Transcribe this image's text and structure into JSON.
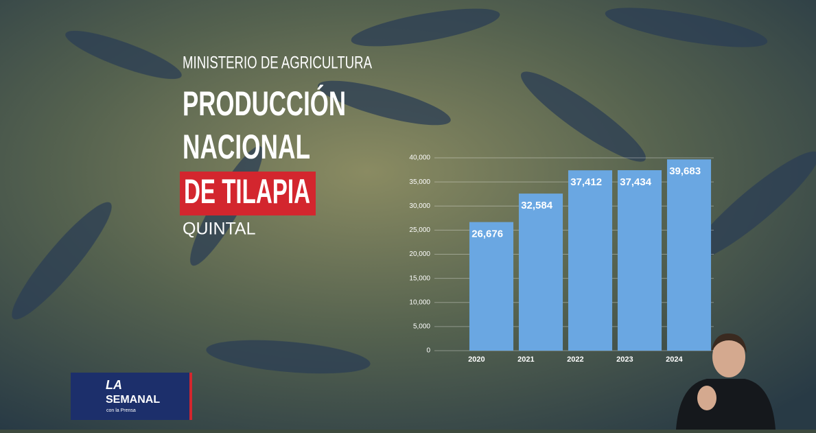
{
  "chart_data": {
    "type": "bar",
    "source": "MINISTERIO DE AGRICULTURA",
    "title_lines": [
      "PRODUCCIÓN",
      "NACIONAL"
    ],
    "title_highlight": "DE TILAPIA",
    "unit": "QUINTAL",
    "categories": [
      "2020",
      "2021",
      "2022",
      "2023",
      "2024"
    ],
    "values": [
      26676,
      32584,
      37412,
      37434,
      39683
    ],
    "value_labels": [
      "26,676",
      "32,584",
      "37,412",
      "37,434",
      "39,683"
    ],
    "color": "#6aa7e2",
    "ylim": [
      0,
      40000
    ],
    "yticks": [
      0,
      {
        "value": 5000,
        "label": "5,000"
      },
      {
        "value": 10000,
        "label": "10,000"
      },
      {
        "value": 15000,
        "label": "15,000"
      },
      {
        "value": 20000,
        "label": "20,000"
      },
      {
        "value": 25000,
        "label": "25,000"
      },
      {
        "value": 30000,
        "label": "30,000"
      },
      {
        "value": 35000,
        "label": "35,000"
      },
      {
        "value": 40000,
        "label": "40,000"
      }
    ],
    "grid": true
  },
  "logo": {
    "line1": "LA",
    "line2": "SEMANAL",
    "line3": "con la Prensa"
  }
}
